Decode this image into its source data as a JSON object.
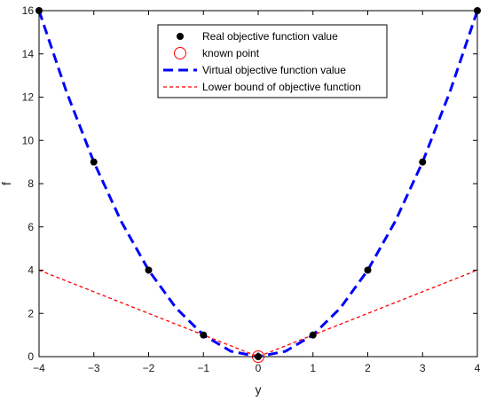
{
  "chart_data": {
    "type": "line",
    "xlabel": "y",
    "ylabel": "f",
    "xlim": [
      -4,
      4
    ],
    "ylim": [
      0,
      16
    ],
    "x_ticks": [
      -4,
      -3,
      -2,
      -1,
      0,
      1,
      2,
      3,
      4
    ],
    "y_ticks": [
      0,
      2,
      4,
      6,
      8,
      10,
      12,
      14,
      16
    ],
    "grid": false,
    "legend_position": "top-center",
    "series": [
      {
        "name": "Real objective function value",
        "kind": "scatter",
        "marker": "filled-circle",
        "color": "#000000",
        "x": [
          -4,
          -3,
          -2,
          -1,
          0,
          1,
          2,
          3,
          4
        ],
        "y": [
          16,
          9,
          4,
          1,
          0,
          1,
          4,
          9,
          16
        ]
      },
      {
        "name": "known point",
        "kind": "scatter",
        "marker": "open-circle",
        "color": "#ff0000",
        "x": [
          0
        ],
        "y": [
          0
        ]
      },
      {
        "name": "Virtual objective function value",
        "kind": "line",
        "style": "dashed-thick",
        "color": "#0000ff",
        "x": [
          -4,
          -3.5,
          -3,
          -2.5,
          -2,
          -1.5,
          -1,
          -0.5,
          0,
          0.5,
          1,
          1.5,
          2,
          2.5,
          3,
          3.5,
          4
        ],
        "y": [
          16,
          12.25,
          9,
          6.25,
          4,
          2.25,
          1,
          0.25,
          0,
          0.25,
          1,
          2.25,
          4,
          6.25,
          9,
          12.25,
          16
        ]
      },
      {
        "name": "Lower bound of objective function",
        "kind": "line",
        "style": "dashed-thin",
        "color": "#ff0000",
        "x": [
          -4,
          0,
          4
        ],
        "y": [
          4,
          0,
          4
        ]
      }
    ]
  }
}
